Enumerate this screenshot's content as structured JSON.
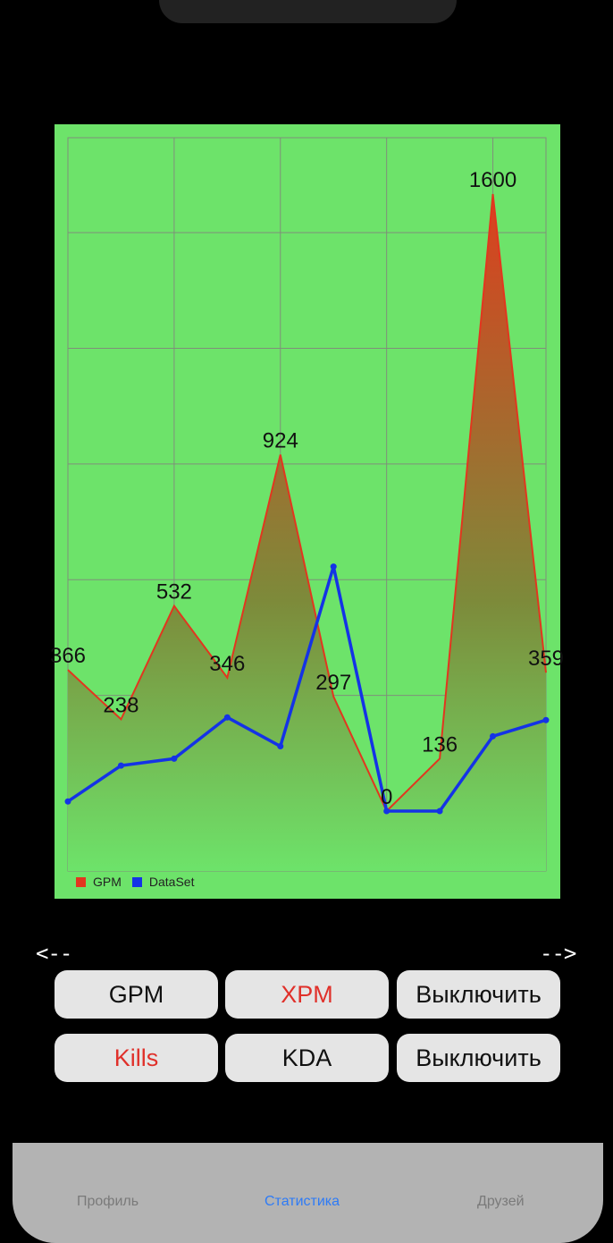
{
  "chart_data": {
    "type": "line",
    "x": [
      1,
      2,
      3,
      4,
      5,
      6,
      7,
      8,
      9,
      10
    ],
    "series": [
      {
        "name": "GPM",
        "values": [
          366,
          238,
          532,
          346,
          924,
          297,
          0,
          136,
          1600,
          359
        ],
        "color": "#e2361f",
        "fill": "gradient",
        "point_labels": [
          "366",
          "238",
          "532",
          "346",
          "924",
          "297",
          "0",
          "136",
          "1600",
          "359"
        ]
      },
      {
        "name": "DataSet",
        "values": [
          25,
          118,
          136,
          243,
          168,
          634,
          0,
          0,
          194,
          236
        ],
        "color": "#1433e6"
      }
    ],
    "ylim": [
      0,
      1750
    ],
    "grid": true,
    "legend": "bottom-left"
  },
  "nav": {
    "prev": "<--",
    "next": "-->"
  },
  "buttons": {
    "row1": [
      {
        "label": "GPM",
        "color": "#111111"
      },
      {
        "label": "XPM",
        "color": "#e0302a"
      },
      {
        "label": "Выключить",
        "color": "#111111"
      }
    ],
    "row2": [
      {
        "label": "Kills",
        "color": "#e0302a"
      },
      {
        "label": "KDA",
        "color": "#111111"
      },
      {
        "label": "Выключить",
        "color": "#111111"
      }
    ]
  },
  "tabs": [
    {
      "label": "Профиль",
      "active": false
    },
    {
      "label": "Статистика",
      "active": true
    },
    {
      "label": "Друзей",
      "active": false
    }
  ]
}
